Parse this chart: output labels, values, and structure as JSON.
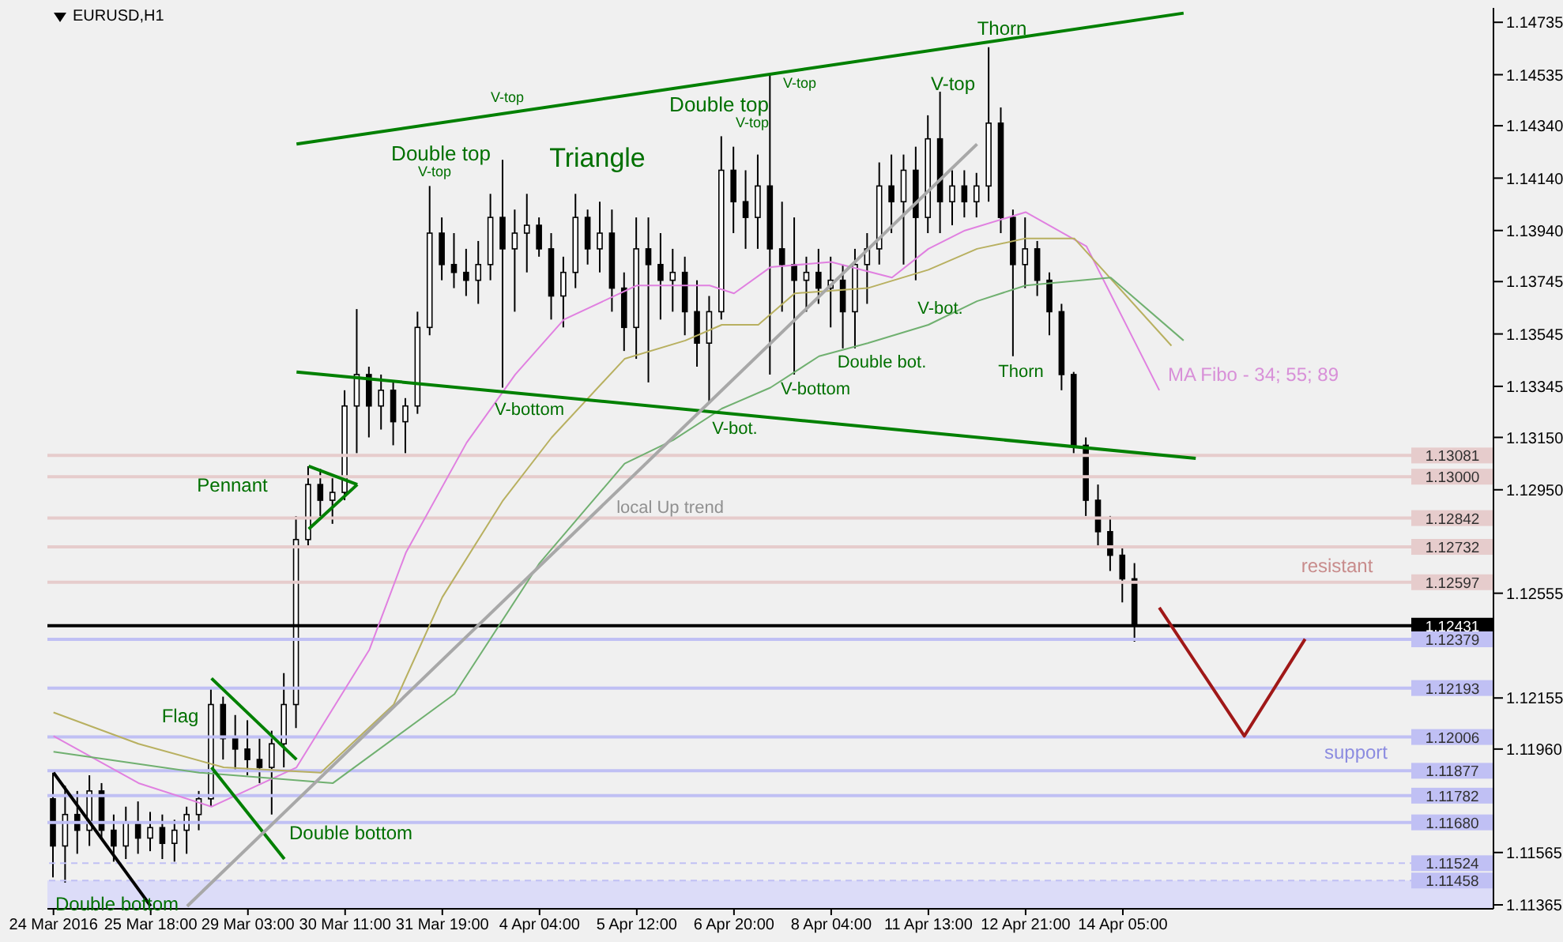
{
  "chart_data": {
    "type": "candlestick",
    "title": "EURUSD,H1",
    "color": "#000000",
    "categories": [
      "24 Mar 2016",
      null,
      null,
      null,
      null,
      null,
      null,
      null,
      "25 Mar 18:00",
      null,
      null,
      null,
      null,
      null,
      null,
      null,
      "29 Mar 03:00",
      null,
      null,
      null,
      null,
      null,
      null,
      null,
      "30 Mar 11:00",
      null,
      null,
      null,
      null,
      null,
      null,
      null,
      "31 Mar 19:00",
      null,
      null,
      null,
      null,
      null,
      null,
      null,
      "4 Apr 04:00",
      null,
      null,
      null,
      null,
      null,
      null,
      null,
      "5 Apr 12:00",
      null,
      null,
      null,
      null,
      null,
      null,
      null,
      "6 Apr 20:00",
      null,
      null,
      null,
      null,
      null,
      null,
      null,
      "8 Apr 04:00",
      null,
      null,
      null,
      null,
      null,
      null,
      null,
      "11 Apr 13:00",
      null,
      null,
      null,
      null,
      null,
      null,
      null,
      "12 Apr 21:00",
      null,
      null,
      null,
      null,
      null,
      null,
      null,
      "14 Apr 05:00",
      null,
      null,
      null,
      null,
      null,
      null,
      null,
      null,
      null,
      null,
      null,
      null,
      null,
      null,
      null,
      null,
      null,
      null,
      null,
      null,
      null,
      null,
      null,
      null,
      null,
      null,
      null,
      null,
      null,
      null
    ],
    "ohlc": [
      [
        1.1177,
        1.1187,
        1.1147,
        1.1159
      ],
      [
        1.1159,
        1.1182,
        1.1145,
        1.1171
      ],
      [
        1.1171,
        1.118,
        1.1156,
        1.1165
      ],
      [
        1.1165,
        1.1186,
        1.1159,
        1.118
      ],
      [
        1.118,
        1.1183,
        1.1162,
        1.1165
      ],
      [
        1.1165,
        1.1171,
        1.1153,
        1.1159
      ],
      [
        1.1159,
        1.1174,
        1.1154,
        1.1168
      ],
      [
        1.1168,
        1.1176,
        1.1156,
        1.1162
      ],
      [
        1.1162,
        1.1172,
        1.1157,
        1.1166
      ],
      [
        1.1166,
        1.1171,
        1.1154,
        1.116
      ],
      [
        1.116,
        1.1169,
        1.1153,
        1.1165
      ],
      [
        1.1165,
        1.1174,
        1.1156,
        1.1171
      ],
      [
        1.1171,
        1.118,
        1.1165,
        1.1177
      ],
      [
        1.1177,
        1.1219,
        1.1174,
        1.1213
      ],
      [
        1.1213,
        1.1216,
        1.1192,
        1.12
      ],
      [
        1.12,
        1.1209,
        1.1188,
        1.1196
      ],
      [
        1.1196,
        1.1207,
        1.1186,
        1.1192
      ],
      [
        1.1192,
        1.12,
        1.1183,
        1.1189
      ],
      [
        1.1189,
        1.1203,
        1.1171,
        1.1198
      ],
      [
        1.1198,
        1.1225,
        1.1189,
        1.1213
      ],
      [
        1.1213,
        1.1285,
        1.1204,
        1.1276
      ],
      [
        1.1276,
        1.1304,
        1.1273,
        1.1297
      ],
      [
        1.1297,
        1.1303,
        1.1285,
        1.1291
      ],
      [
        1.1291,
        1.13,
        1.1282,
        1.1294
      ],
      [
        1.1294,
        1.1333,
        1.1291,
        1.1327
      ],
      [
        1.1327,
        1.1364,
        1.1309,
        1.1339
      ],
      [
        1.1339,
        1.1342,
        1.1315,
        1.1327
      ],
      [
        1.1327,
        1.1339,
        1.1318,
        1.1333
      ],
      [
        1.1333,
        1.1336,
        1.1312,
        1.1321
      ],
      [
        1.1321,
        1.133,
        1.1309,
        1.1327
      ],
      [
        1.1327,
        1.1363,
        1.1324,
        1.1357
      ],
      [
        1.1357,
        1.1411,
        1.1354,
        1.1393
      ],
      [
        1.1393,
        1.1399,
        1.1375,
        1.1381
      ],
      [
        1.1381,
        1.1393,
        1.1372,
        1.1378
      ],
      [
        1.1378,
        1.1387,
        1.1369,
        1.1375
      ],
      [
        1.1375,
        1.139,
        1.1366,
        1.1381
      ],
      [
        1.1381,
        1.1408,
        1.1375,
        1.1399
      ],
      [
        1.1399,
        1.1421,
        1.1334,
        1.1387
      ],
      [
        1.1387,
        1.1402,
        1.1363,
        1.1393
      ],
      [
        1.1393,
        1.1408,
        1.1378,
        1.1396
      ],
      [
        1.1396,
        1.1399,
        1.1384,
        1.1387
      ],
      [
        1.1387,
        1.1393,
        1.136,
        1.1369
      ],
      [
        1.1369,
        1.1384,
        1.1357,
        1.1378
      ],
      [
        1.1378,
        1.1408,
        1.1372,
        1.1399
      ],
      [
        1.1399,
        1.1402,
        1.1381,
        1.1387
      ],
      [
        1.1387,
        1.1405,
        1.1378,
        1.1393
      ],
      [
        1.1393,
        1.1402,
        1.1363,
        1.1372
      ],
      [
        1.1372,
        1.1378,
        1.1348,
        1.1357
      ],
      [
        1.1357,
        1.1399,
        1.1345,
        1.1387
      ],
      [
        1.1387,
        1.1399,
        1.1336,
        1.1381
      ],
      [
        1.1381,
        1.1393,
        1.136,
        1.1375
      ],
      [
        1.1375,
        1.1387,
        1.1363,
        1.1378
      ],
      [
        1.1378,
        1.1384,
        1.1354,
        1.1363
      ],
      [
        1.1363,
        1.1375,
        1.1342,
        1.1351
      ],
      [
        1.1351,
        1.1369,
        1.1328,
        1.1363
      ],
      [
        1.1363,
        1.143,
        1.136,
        1.1417
      ],
      [
        1.1417,
        1.1426,
        1.1393,
        1.1405
      ],
      [
        1.1405,
        1.1417,
        1.1387,
        1.1399
      ],
      [
        1.1399,
        1.1423,
        1.1387,
        1.1411
      ],
      [
        1.1411,
        1.1454,
        1.1339,
        1.1387
      ],
      [
        1.1387,
        1.1405,
        1.1363,
        1.1381
      ],
      [
        1.1381,
        1.1399,
        1.1339,
        1.1375
      ],
      [
        1.1375,
        1.1384,
        1.1363,
        1.1378
      ],
      [
        1.1378,
        1.1387,
        1.1366,
        1.1372
      ],
      [
        1.1372,
        1.1384,
        1.1357,
        1.1375
      ],
      [
        1.1375,
        1.1381,
        1.1349,
        1.1363
      ],
      [
        1.1363,
        1.1387,
        1.1349,
        1.1381
      ],
      [
        1.1381,
        1.1393,
        1.1366,
        1.1387
      ],
      [
        1.1387,
        1.142,
        1.1381,
        1.1411
      ],
      [
        1.1411,
        1.1423,
        1.1393,
        1.1405
      ],
      [
        1.1405,
        1.1423,
        1.1381,
        1.1417
      ],
      [
        1.1417,
        1.1426,
        1.1375,
        1.1399
      ],
      [
        1.1399,
        1.1438,
        1.1393,
        1.1429
      ],
      [
        1.1429,
        1.1447,
        1.1393,
        1.1405
      ],
      [
        1.1405,
        1.1417,
        1.1396,
        1.1411
      ],
      [
        1.1411,
        1.1417,
        1.1399,
        1.1405
      ],
      [
        1.1405,
        1.1416,
        1.1399,
        1.1411
      ],
      [
        1.1411,
        1.1464,
        1.1405,
        1.1435
      ],
      [
        1.1435,
        1.1441,
        1.1393,
        1.1399
      ],
      [
        1.1399,
        1.1402,
        1.1346,
        1.1381
      ],
      [
        1.1381,
        1.1399,
        1.1372,
        1.1387
      ],
      [
        1.1387,
        1.139,
        1.1369,
        1.1375
      ],
      [
        1.1375,
        1.1378,
        1.1354,
        1.1363
      ],
      [
        1.1363,
        1.1366,
        1.1333,
        1.1339
      ],
      [
        1.1339,
        1.134,
        1.1309,
        1.1312
      ],
      [
        1.1312,
        1.1315,
        1.1285,
        1.1291
      ],
      [
        1.1291,
        1.1297,
        1.1273,
        1.1279
      ],
      [
        1.1279,
        1.1285,
        1.1264,
        1.127
      ],
      [
        1.127,
        1.1273,
        1.1252,
        1.1261
      ],
      [
        1.1261,
        1.1267,
        1.1237,
        1.1243
      ],
      null,
      null,
      null,
      null,
      null,
      null,
      null,
      null,
      null,
      null,
      null,
      null,
      null,
      null,
      null,
      null,
      null,
      null,
      null,
      null,
      null,
      null,
      null,
      null,
      null,
      null,
      null,
      null,
      null
    ],
    "ylim": [
      1.1135,
      1.1479
    ],
    "yticks": [
      {
        "value": 1.14735,
        "label": "1.14735"
      },
      {
        "value": 1.14535,
        "label": "1.14535"
      },
      {
        "value": 1.1434,
        "label": "1.14340"
      },
      {
        "value": 1.1414,
        "label": "1.14140"
      },
      {
        "value": 1.1394,
        "label": "1.13940"
      },
      {
        "value": 1.13745,
        "label": "1.13745"
      },
      {
        "value": 1.13545,
        "label": "1.13545"
      },
      {
        "value": 1.13345,
        "label": "1.13345"
      },
      {
        "value": 1.1315,
        "label": "1.13150"
      },
      {
        "value": 1.1295,
        "label": "1.12950"
      },
      {
        "value": 1.12555,
        "label": "1.12555"
      },
      {
        "value": 1.12155,
        "label": "1.12155"
      },
      {
        "value": 1.1196,
        "label": "1.11960"
      },
      {
        "value": 1.11565,
        "label": "1.11565"
      },
      {
        "value": 1.11365,
        "label": "1.11365"
      }
    ],
    "series": [
      {
        "type": "line",
        "color": "#e080e0",
        "values": [
          1.1201,
          null,
          null,
          null,
          null,
          null,
          null,
          1.1183,
          null,
          null,
          null,
          null,
          null,
          1.1174,
          null,
          null,
          null,
          null,
          null,
          null,
          1.1189,
          null,
          null,
          null,
          null,
          null,
          1.1234,
          null,
          null,
          1.1271,
          null,
          null,
          null,
          null,
          1.1313,
          null,
          null,
          null,
          1.1339,
          null,
          null,
          null,
          1.136,
          null,
          null,
          null,
          null,
          null,
          1.1373,
          null,
          null,
          null,
          null,
          null,
          1.1373,
          null,
          1.137,
          null,
          null,
          1.138,
          null,
          null,
          null,
          null,
          1.1382,
          null,
          null,
          null,
          null,
          1.1376,
          null,
          null,
          1.1387,
          null,
          null,
          1.1394,
          null,
          null,
          null,
          null,
          1.1401,
          null,
          null,
          null,
          null,
          1.1388,
          null,
          null,
          null,
          null,
          null,
          1.1333,
          null,
          null,
          null,
          null,
          null,
          null,
          null,
          null,
          null,
          null,
          null,
          null,
          null,
          null,
          null,
          null,
          null,
          null,
          null,
          null,
          null,
          null,
          null,
          null,
          null,
          null,
          null
        ]
      },
      {
        "type": "line",
        "color": "#b8b060",
        "values": [
          1.121,
          null,
          null,
          null,
          null,
          null,
          null,
          1.1198,
          null,
          null,
          null,
          null,
          null,
          null,
          1.1189,
          null,
          null,
          null,
          null,
          null,
          null,
          null,
          1.1187,
          null,
          null,
          null,
          null,
          null,
          1.1213,
          null,
          null,
          null,
          1.1254,
          null,
          null,
          null,
          null,
          1.1291,
          null,
          null,
          null,
          1.1315,
          null,
          null,
          1.133,
          null,
          null,
          1.1345,
          null,
          null,
          null,
          null,
          1.1352,
          null,
          null,
          1.1358,
          null,
          null,
          1.1358,
          null,
          null,
          1.137,
          null,
          null,
          null,
          null,
          null,
          1.1372,
          null,
          null,
          null,
          null,
          1.1379,
          null,
          null,
          null,
          1.1387,
          null,
          null,
          null,
          1.1391,
          null,
          null,
          null,
          1.1391,
          null,
          null,
          null,
          null,
          null,
          null,
          null,
          1.135,
          null,
          null,
          null,
          null,
          null,
          null,
          null,
          null,
          null,
          null,
          null,
          null,
          null,
          null,
          null,
          null,
          null,
          null,
          null,
          null,
          null,
          null,
          null,
          null,
          null,
          null
        ]
      },
      {
        "type": "line",
        "color": "#70b070",
        "values": [
          1.1195,
          null,
          null,
          null,
          null,
          null,
          null,
          null,
          null,
          null,
          null,
          null,
          1.1187,
          null,
          null,
          null,
          null,
          null,
          null,
          null,
          null,
          null,
          null,
          1.1183,
          null,
          null,
          null,
          null,
          null,
          null,
          null,
          null,
          null,
          1.1217,
          null,
          null,
          null,
          null,
          null,
          null,
          1.1267,
          null,
          null,
          null,
          null,
          null,
          null,
          1.1305,
          null,
          null,
          null,
          1.1314,
          null,
          null,
          null,
          1.1326,
          null,
          null,
          null,
          1.1334,
          null,
          null,
          null,
          1.1346,
          null,
          null,
          null,
          1.1351,
          null,
          null,
          null,
          null,
          1.1358,
          null,
          null,
          null,
          1.1367,
          null,
          null,
          null,
          1.1373,
          null,
          null,
          null,
          null,
          null,
          null,
          1.1376,
          null,
          null,
          null,
          null,
          null,
          1.1352,
          null,
          null,
          null,
          null,
          null,
          null,
          null,
          null,
          null,
          null,
          null,
          null,
          null,
          null,
          null,
          null,
          null,
          null,
          null,
          null,
          null,
          null,
          null,
          null,
          null
        ]
      },
      {
        "type": "line",
        "color": "#008000",
        "values": [
          null,
          null,
          null,
          null,
          null,
          null,
          null,
          null,
          null,
          null,
          null,
          null,
          null,
          null,
          null,
          null,
          null,
          null,
          null,
          null,
          1.1427,
          null,
          null,
          null,
          null,
          null,
          null,
          null,
          null,
          null,
          null,
          null,
          null,
          null,
          null,
          null,
          null,
          null,
          null,
          null,
          null,
          null,
          null,
          null,
          null,
          null,
          null,
          null,
          null,
          null,
          null,
          null,
          null,
          null,
          null,
          null,
          null,
          null,
          null,
          null,
          null,
          null,
          null,
          null,
          null,
          null,
          null,
          null,
          null,
          null,
          null,
          null,
          null,
          null,
          null,
          null,
          null,
          null,
          null,
          null,
          null,
          null,
          null,
          null,
          null,
          null,
          null,
          null,
          null,
          null,
          null,
          null,
          null,
          1.1477,
          null,
          null,
          null,
          null,
          null,
          null,
          null,
          null,
          null,
          null,
          null,
          null,
          null,
          null,
          null,
          null,
          null,
          null,
          null,
          null,
          null,
          null,
          null,
          null,
          null
        ]
      },
      {
        "type": "line",
        "color": "#008000",
        "values": [
          null,
          null,
          null,
          null,
          null,
          null,
          null,
          null,
          null,
          null,
          null,
          null,
          null,
          null,
          null,
          null,
          null,
          null,
          null,
          null,
          1.134,
          null,
          null,
          null,
          null,
          null,
          null,
          null,
          null,
          null,
          null,
          null,
          null,
          null,
          null,
          null,
          null,
          null,
          null,
          null,
          null,
          null,
          null,
          null,
          null,
          null,
          null,
          null,
          null,
          null,
          null,
          null,
          null,
          null,
          null,
          null,
          null,
          null,
          null,
          null,
          null,
          null,
          null,
          null,
          null,
          null,
          null,
          null,
          null,
          null,
          null,
          null,
          null,
          null,
          null,
          null,
          null,
          null,
          null,
          null,
          null,
          null,
          null,
          null,
          null,
          null,
          null,
          null,
          null,
          null,
          null,
          null,
          null,
          null,
          1.1307,
          null,
          null,
          null,
          null,
          null,
          null,
          null,
          null,
          null,
          null,
          null,
          null,
          null,
          null,
          null,
          null,
          null,
          null,
          null,
          null,
          null,
          null,
          null,
          null
        ]
      },
      {
        "type": "line",
        "color": "#008000",
        "values": [
          null,
          null,
          null,
          null,
          null,
          null,
          null,
          null,
          null,
          null,
          null,
          null,
          null,
          null,
          null,
          null,
          null,
          null,
          null,
          null,
          null,
          1.1304,
          null,
          null,
          null,
          1.1297,
          null,
          null,
          null,
          null,
          null,
          null,
          null,
          null,
          null,
          null,
          null,
          null,
          null,
          null,
          null,
          null,
          null,
          null,
          null,
          null,
          null,
          null,
          null,
          null,
          null,
          null,
          null,
          null,
          null,
          null,
          null,
          null,
          null,
          null,
          null,
          null,
          null,
          null,
          null,
          null,
          null,
          null,
          null,
          null,
          null,
          null,
          null,
          null,
          null,
          null,
          null,
          null,
          null,
          null,
          null,
          null,
          null,
          null,
          null,
          null,
          null,
          null,
          null,
          null,
          null,
          null,
          null,
          null,
          null,
          null,
          null,
          null,
          null,
          null,
          null,
          null,
          null,
          null,
          null,
          null,
          null,
          null,
          null,
          null,
          null,
          null,
          null,
          null,
          null,
          null,
          null,
          null,
          null
        ]
      },
      {
        "type": "line",
        "color": "#008000",
        "values": [
          null,
          null,
          null,
          null,
          null,
          null,
          null,
          null,
          null,
          null,
          null,
          null,
          null,
          null,
          null,
          null,
          null,
          null,
          null,
          null,
          null,
          1.128,
          null,
          null,
          null,
          1.1297,
          null,
          null,
          null,
          null,
          null,
          null,
          null,
          null,
          null,
          null,
          null,
          null,
          null,
          null,
          null,
          null,
          null,
          null,
          null,
          null,
          null,
          null,
          null,
          null,
          null,
          null,
          null,
          null,
          null,
          null,
          null,
          null,
          null,
          null,
          null,
          null,
          null,
          null,
          null,
          null,
          null,
          null,
          null,
          null,
          null,
          null,
          null,
          null,
          null,
          null,
          null,
          null,
          null,
          null,
          null,
          null,
          null,
          null,
          null,
          null,
          null,
          null,
          null,
          null,
          null,
          null,
          null,
          null,
          null,
          null,
          null,
          null,
          null,
          null,
          null,
          null,
          null,
          null,
          null,
          null,
          null,
          null,
          null,
          null,
          null,
          null,
          null,
          null,
          null,
          null,
          null,
          null,
          null
        ]
      },
      {
        "type": "line",
        "color": "#008000",
        "values": [
          null,
          null,
          null,
          null,
          null,
          null,
          null,
          null,
          null,
          null,
          null,
          null,
          null,
          1.1223,
          null,
          null,
          null,
          null,
          null,
          null,
          1.1192,
          null,
          null,
          null,
          null,
          null,
          null,
          null,
          null,
          null,
          null,
          null,
          null,
          null,
          null,
          null,
          null,
          null,
          null,
          null,
          null,
          null,
          null,
          null,
          null,
          null,
          null,
          null,
          null,
          null,
          null,
          null,
          null,
          null,
          null,
          null,
          null,
          null,
          null,
          null,
          null,
          null,
          null,
          null,
          null,
          null,
          null,
          null,
          null,
          null,
          null,
          null,
          null,
          null,
          null,
          null,
          null,
          null,
          null,
          null,
          null,
          null,
          null,
          null,
          null,
          null,
          null,
          null,
          null,
          null,
          null,
          null,
          null,
          null,
          null,
          null,
          null,
          null,
          null,
          null,
          null,
          null,
          null,
          null,
          null,
          null,
          null,
          null,
          null,
          null,
          null,
          null,
          null,
          null,
          null,
          null,
          null,
          null,
          null
        ]
      },
      {
        "type": "line",
        "color": "#008000",
        "values": [
          null,
          null,
          null,
          null,
          null,
          null,
          null,
          null,
          null,
          null,
          null,
          null,
          null,
          1.1189,
          null,
          null,
          null,
          null,
          null,
          1.1154,
          null,
          null,
          null,
          null,
          null,
          null,
          null,
          null,
          null,
          null,
          null,
          null,
          null,
          null,
          null,
          null,
          null,
          null,
          null,
          null,
          null,
          null,
          null,
          null,
          null,
          null,
          null,
          null,
          null,
          null,
          null,
          null,
          null,
          null,
          null,
          null,
          null,
          null,
          null,
          null,
          null,
          null,
          null,
          null,
          null,
          null,
          null,
          null,
          null,
          null,
          null,
          null,
          null,
          null,
          null,
          null,
          null,
          null,
          null,
          null,
          null,
          null,
          null,
          null,
          null,
          null,
          null,
          null,
          null,
          null,
          null,
          null,
          null,
          null,
          null,
          null,
          null,
          null,
          null,
          null,
          null,
          null,
          null,
          null,
          null,
          null,
          null,
          null,
          null,
          null,
          null,
          null,
          null,
          null,
          null,
          null,
          null,
          null,
          null
        ]
      },
      {
        "type": "line",
        "color": "#a8a8a8",
        "values": [
          null,
          null,
          null,
          null,
          null,
          null,
          null,
          null,
          null,
          null,
          null,
          1.1136,
          null,
          null,
          null,
          null,
          null,
          null,
          null,
          null,
          null,
          null,
          null,
          null,
          null,
          null,
          null,
          null,
          null,
          null,
          null,
          null,
          null,
          null,
          null,
          null,
          null,
          null,
          null,
          null,
          null,
          null,
          null,
          null,
          null,
          null,
          null,
          null,
          null,
          null,
          null,
          null,
          null,
          null,
          null,
          null,
          null,
          null,
          null,
          null,
          null,
          null,
          null,
          null,
          null,
          null,
          null,
          null,
          null,
          null,
          null,
          null,
          null,
          null,
          null,
          null,
          1.1427,
          null,
          null,
          null,
          null,
          null,
          null,
          null,
          null,
          null,
          null,
          null,
          null,
          null,
          null,
          null,
          null,
          null,
          null,
          null,
          null,
          null,
          null,
          null,
          null,
          null,
          null,
          null,
          null,
          null,
          null,
          null,
          null,
          null,
          null,
          null,
          null,
          null,
          null,
          null,
          null,
          null,
          null
        ]
      },
      {
        "type": "line",
        "color": "#000000",
        "values": [
          1.1187,
          null,
          null,
          null,
          null,
          null,
          null,
          null,
          1.1136,
          null,
          null,
          null,
          null,
          null,
          null,
          null,
          null,
          null,
          null,
          null,
          null,
          null,
          null,
          null,
          null,
          null,
          null,
          null,
          null,
          null,
          null,
          null,
          null,
          null,
          null,
          null,
          null,
          null,
          null,
          null,
          null,
          null,
          null,
          null,
          null,
          null,
          null,
          null,
          null,
          null,
          null,
          null,
          null,
          null,
          null,
          null,
          null,
          null,
          null,
          null,
          null,
          null,
          null,
          null,
          null,
          null,
          null,
          null,
          null,
          null,
          null,
          null,
          null,
          null,
          null,
          null,
          null,
          null,
          null,
          null,
          null,
          null,
          null,
          null,
          null,
          null,
          null,
          null,
          null,
          null,
          null,
          null,
          null,
          null,
          null,
          null,
          null,
          null,
          null,
          null,
          null,
          null,
          null,
          null,
          null,
          null,
          null,
          null,
          null,
          null,
          null,
          null,
          null,
          null,
          null,
          null,
          null,
          null,
          null
        ]
      },
      {
        "type": "line",
        "color": "#a01818",
        "values": [
          null,
          null,
          null,
          null,
          null,
          null,
          null,
          null,
          null,
          null,
          null,
          null,
          null,
          null,
          null,
          null,
          null,
          null,
          null,
          null,
          null,
          null,
          null,
          null,
          null,
          null,
          null,
          null,
          null,
          null,
          null,
          null,
          null,
          null,
          null,
          null,
          null,
          null,
          null,
          null,
          null,
          null,
          null,
          null,
          null,
          null,
          null,
          null,
          null,
          null,
          null,
          null,
          null,
          null,
          null,
          null,
          null,
          null,
          null,
          null,
          null,
          null,
          null,
          null,
          null,
          null,
          null,
          null,
          null,
          null,
          null,
          null,
          null,
          null,
          null,
          null,
          null,
          null,
          null,
          null,
          null,
          null,
          null,
          null,
          null,
          null,
          null,
          null,
          null,
          null,
          null,
          1.125,
          null,
          null,
          null,
          null,
          null,
          null,
          1.1201,
          null,
          null,
          null,
          null,
          1.1238,
          null,
          null,
          null,
          null,
          null,
          null,
          null,
          null,
          null,
          null,
          null,
          null,
          null,
          null,
          null
        ]
      }
    ],
    "ref_lines": [
      {
        "axis": "y",
        "value": 1.13081,
        "label": "1.13081",
        "color": "#e6cccc"
      },
      {
        "axis": "y",
        "value": 1.13,
        "label": "1.13000",
        "color": "#e6cccc"
      },
      {
        "axis": "y",
        "value": 1.12842,
        "label": "1.12842",
        "color": "#e6cccc"
      },
      {
        "axis": "y",
        "value": 1.12732,
        "label": "1.12732",
        "color": "#e6cccc"
      },
      {
        "axis": "y",
        "value": 1.12597,
        "label": "1.12597",
        "color": "#e6cccc"
      },
      {
        "axis": "y",
        "value": 1.12431,
        "label": "1.12431",
        "color": "#000000"
      },
      {
        "axis": "y",
        "value": 1.12379,
        "label": "1.12379",
        "color": "#c0c0f4"
      },
      {
        "axis": "y",
        "value": 1.12193,
        "label": "1.12193",
        "color": "#c0c0f4"
      },
      {
        "axis": "y",
        "value": 1.12006,
        "label": "1.12006",
        "color": "#c0c0f4"
      },
      {
        "axis": "y",
        "value": 1.11877,
        "label": "1.11877",
        "color": "#c0c0f4"
      },
      {
        "axis": "y",
        "value": 1.11782,
        "label": "1.11782",
        "color": "#c0c0f4"
      },
      {
        "axis": "y",
        "value": 1.1168,
        "label": "1.11680",
        "color": "#c0c0f4"
      },
      {
        "axis": "y",
        "value": 1.11524,
        "label": "1.11524",
        "color": "#c0c0f4",
        "line_style": "dashed"
      },
      {
        "axis": "y",
        "value": 1.11458,
        "label": "1.11458",
        "color": "#c0c0f4",
        "line_style": "dashed"
      }
    ],
    "bands": [
      {
        "axis": "y",
        "from": 1.1135,
        "to": 1.11458,
        "color": "#dcdcf8"
      }
    ],
    "annotations": [
      "V-top",
      "Double top",
      "V-top",
      "Triangle",
      "Double top",
      "V-top",
      "V-top",
      "V-top",
      "Thorn",
      "V-bottom",
      "V-bot.",
      "V-bottom",
      "Double bot.",
      "V-bot.",
      "Thorn",
      "MA Fibo - 34; 55; 89",
      "Pennant",
      "Flag",
      "Double bottom",
      "Double bottom",
      "local Up trend",
      "resistant",
      "support"
    ]
  }
}
